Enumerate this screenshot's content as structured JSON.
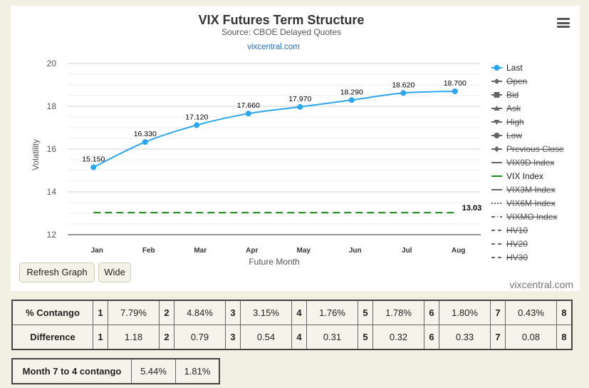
{
  "chart_data": {
    "type": "line",
    "title": "VIX Futures Term Structure",
    "subtitle": "Source: CBOE Delayed Quotes",
    "source_link": "vixcentral.com",
    "xlabel": "Future Month",
    "ylabel": "Volatility",
    "categories": [
      "Jan",
      "Feb",
      "Mar",
      "Apr",
      "May",
      "Jun",
      "Jul",
      "Aug"
    ],
    "ylim": [
      12,
      20
    ],
    "yticks": [
      "12",
      "14",
      "16",
      "18",
      "20"
    ],
    "grid": true,
    "legend_position": "right",
    "series": [
      {
        "name": "Last",
        "color": "#2aa7ee",
        "values": [
          15.15,
          16.33,
          17.12,
          17.66,
          17.97,
          18.29,
          18.62,
          18.7
        ],
        "labels": [
          "15.150",
          "16.330",
          "17.120",
          "17.660",
          "17.970",
          "18.290",
          "18.620",
          "18.700"
        ]
      },
      {
        "name": "VIX Index",
        "color": "#1a8a1a",
        "style": "dashed",
        "values": [
          13.03,
          13.03,
          13.03,
          13.03,
          13.03,
          13.03,
          13.03,
          13.03
        ],
        "end_label": "13.03"
      }
    ],
    "legend": [
      {
        "name": "Last",
        "active": true,
        "marker": "circle-line",
        "color": "#2aa7ee"
      },
      {
        "name": "Open",
        "active": false,
        "marker": "diamond-line"
      },
      {
        "name": "Bid",
        "active": false,
        "marker": "square-line"
      },
      {
        "name": "Ask",
        "active": false,
        "marker": "triangle-line"
      },
      {
        "name": "High",
        "active": false,
        "marker": "triangle-down-line"
      },
      {
        "name": "Low",
        "active": false,
        "marker": "circle-line"
      },
      {
        "name": "Previous Close",
        "active": false,
        "marker": "diamond-line"
      },
      {
        "name": "VIX9D Index",
        "active": false,
        "marker": "solid-line"
      },
      {
        "name": "VIX Index",
        "active": true,
        "marker": "solid-line",
        "color": "#1a8a1a"
      },
      {
        "name": "VIX3M Index",
        "active": false,
        "marker": "solid-line"
      },
      {
        "name": "VIX6M Index",
        "active": false,
        "marker": "dotted-line"
      },
      {
        "name": "VIXMO Index",
        "active": false,
        "marker": "dash-dot-line"
      },
      {
        "name": "HV10",
        "active": false,
        "marker": "dashed-line"
      },
      {
        "name": "HV20",
        "active": false,
        "marker": "dashed-line"
      },
      {
        "name": "HV30",
        "active": false,
        "marker": "dashed-line"
      }
    ]
  },
  "buttons": {
    "refresh": "Refresh Graph",
    "wide": "Wide"
  },
  "watermark": "vixcentral.com",
  "contango_table": {
    "contango_label": "% Contango",
    "difference_label": "Difference",
    "contango": [
      {
        "n": "1",
        "v": "7.79%"
      },
      {
        "n": "2",
        "v": "4.84%"
      },
      {
        "n": "3",
        "v": "3.15%"
      },
      {
        "n": "4",
        "v": "1.76%"
      },
      {
        "n": "5",
        "v": "1.78%"
      },
      {
        "n": "6",
        "v": "1.80%"
      },
      {
        "n": "7",
        "v": "0.43%"
      },
      {
        "n": "8",
        "v": ""
      }
    ],
    "difference": [
      {
        "n": "1",
        "v": "1.18"
      },
      {
        "n": "2",
        "v": "0.79"
      },
      {
        "n": "3",
        "v": "0.54"
      },
      {
        "n": "4",
        "v": "0.31"
      },
      {
        "n": "5",
        "v": "0.32"
      },
      {
        "n": "6",
        "v": "0.33"
      },
      {
        "n": "7",
        "v": "0.08"
      },
      {
        "n": "8",
        "v": ""
      }
    ]
  },
  "month_table": {
    "label": "Month 7 to 4 contango",
    "value1": "5.44%",
    "value2": "1.81%"
  }
}
